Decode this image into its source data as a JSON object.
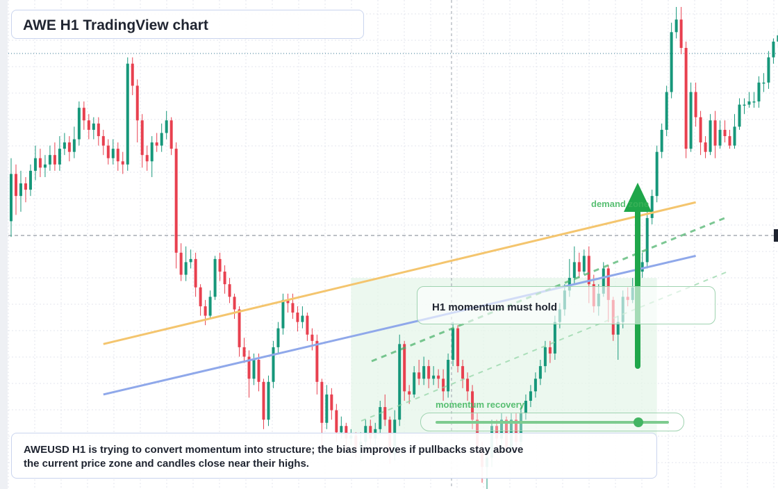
{
  "header": {
    "title": "AWE H1 TradingView chart"
  },
  "annotations": {
    "hold_label": "H1 momentum must hold",
    "demand_label": "demand zone",
    "momentum_label": "momentum recovery",
    "momentum_level": 0.87
  },
  "note": {
    "text": "AWEUSD H1 is trying to convert momentum into structure; the bias improves if pullbacks stay above the current price zone and candles close near their highs."
  },
  "colors": {
    "up": "#16977a",
    "down": "#e8404f",
    "orange_line": "#f4c56e",
    "blue_line": "#8fa8ea",
    "green": "#1fa64a",
    "zone": "#e6f6e9"
  },
  "chart_data": {
    "type": "candlestick",
    "symbol": "AWEUSD",
    "timeframe": "H1",
    "title": "AWE H1 TradingView chart",
    "grid": true,
    "candles": [
      {
        "o": 60,
        "c": 75,
        "h": 80,
        "l": 55
      },
      {
        "o": 75,
        "c": 68,
        "h": 78,
        "l": 62
      },
      {
        "o": 68,
        "c": 72,
        "h": 76,
        "l": 63
      },
      {
        "o": 72,
        "c": 70,
        "h": 74,
        "l": 66
      },
      {
        "o": 70,
        "c": 76,
        "h": 78,
        "l": 68
      },
      {
        "o": 76,
        "c": 80,
        "h": 84,
        "l": 73
      },
      {
        "o": 80,
        "c": 77,
        "h": 83,
        "l": 74
      },
      {
        "o": 77,
        "c": 78,
        "h": 81,
        "l": 74
      },
      {
        "o": 78,
        "c": 81,
        "h": 84,
        "l": 76
      },
      {
        "o": 81,
        "c": 78,
        "h": 85,
        "l": 76
      },
      {
        "o": 78,
        "c": 83,
        "h": 87,
        "l": 76
      },
      {
        "o": 83,
        "c": 85,
        "h": 88,
        "l": 81
      },
      {
        "o": 85,
        "c": 82,
        "h": 87,
        "l": 79
      },
      {
        "o": 82,
        "c": 86,
        "h": 90,
        "l": 80
      },
      {
        "o": 86,
        "c": 96,
        "h": 98,
        "l": 84
      },
      {
        "o": 96,
        "c": 92,
        "h": 98,
        "l": 89
      },
      {
        "o": 92,
        "c": 89,
        "h": 94,
        "l": 86
      },
      {
        "o": 89,
        "c": 91,
        "h": 93,
        "l": 86
      },
      {
        "o": 91,
        "c": 87,
        "h": 93,
        "l": 84
      },
      {
        "o": 87,
        "c": 84,
        "h": 89,
        "l": 81
      },
      {
        "o": 84,
        "c": 80,
        "h": 86,
        "l": 78
      },
      {
        "o": 80,
        "c": 83,
        "h": 86,
        "l": 78
      },
      {
        "o": 83,
        "c": 79,
        "h": 85,
        "l": 76
      },
      {
        "o": 79,
        "c": 78,
        "h": 82,
        "l": 75
      },
      {
        "o": 78,
        "c": 110,
        "h": 112,
        "l": 76
      },
      {
        "o": 110,
        "c": 103,
        "h": 112,
        "l": 100
      },
      {
        "o": 103,
        "c": 92,
        "h": 105,
        "l": 85
      },
      {
        "o": 92,
        "c": 81,
        "h": 94,
        "l": 77
      },
      {
        "o": 81,
        "c": 79,
        "h": 84,
        "l": 76
      },
      {
        "o": 79,
        "c": 85,
        "h": 87,
        "l": 74
      },
      {
        "o": 85,
        "c": 84,
        "h": 88,
        "l": 82
      },
      {
        "o": 84,
        "c": 88,
        "h": 91,
        "l": 82
      },
      {
        "o": 88,
        "c": 92,
        "h": 95,
        "l": 86
      },
      {
        "o": 92,
        "c": 83,
        "h": 93,
        "l": 81
      },
      {
        "o": 83,
        "c": 50,
        "h": 85,
        "l": 45
      },
      {
        "o": 50,
        "c": 43,
        "h": 53,
        "l": 41
      },
      {
        "o": 43,
        "c": 47,
        "h": 52,
        "l": 41
      },
      {
        "o": 47,
        "c": 48,
        "h": 51,
        "l": 45
      },
      {
        "o": 48,
        "c": 39,
        "h": 50,
        "l": 36
      },
      {
        "o": 39,
        "c": 33,
        "h": 40,
        "l": 30
      },
      {
        "o": 33,
        "c": 30,
        "h": 35,
        "l": 27
      },
      {
        "o": 30,
        "c": 36,
        "h": 38,
        "l": 29
      },
      {
        "o": 36,
        "c": 48,
        "h": 49,
        "l": 35
      },
      {
        "o": 48,
        "c": 44,
        "h": 50,
        "l": 41
      },
      {
        "o": 44,
        "c": 40,
        "h": 46,
        "l": 37
      },
      {
        "o": 40,
        "c": 36,
        "h": 42,
        "l": 34
      },
      {
        "o": 36,
        "c": 32,
        "h": 37,
        "l": 29
      },
      {
        "o": 32,
        "c": 20,
        "h": 33,
        "l": 17
      },
      {
        "o": 20,
        "c": 17,
        "h": 23,
        "l": 15
      },
      {
        "o": 17,
        "c": 10,
        "h": 19,
        "l": 4
      },
      {
        "o": 10,
        "c": 16,
        "h": 18,
        "l": 8
      },
      {
        "o": 16,
        "c": 9,
        "h": 18,
        "l": 6
      },
      {
        "o": 9,
        "c": -3,
        "h": 10,
        "l": -6
      },
      {
        "o": -3,
        "c": 9,
        "h": 11,
        "l": -5
      },
      {
        "o": 9,
        "c": 20,
        "h": 22,
        "l": 7
      },
      {
        "o": 20,
        "c": 26,
        "h": 28,
        "l": 18
      },
      {
        "o": 26,
        "c": 35,
        "h": 37,
        "l": 24
      },
      {
        "o": 35,
        "c": 34,
        "h": 37,
        "l": 31
      },
      {
        "o": 34,
        "c": 31,
        "h": 37,
        "l": 29
      },
      {
        "o": 31,
        "c": 28,
        "h": 33,
        "l": 25
      },
      {
        "o": 28,
        "c": 30,
        "h": 33,
        "l": 26
      },
      {
        "o": 30,
        "c": 24,
        "h": 31,
        "l": 22
      },
      {
        "o": 24,
        "c": 22,
        "h": 26,
        "l": 19
      },
      {
        "o": 22,
        "c": 9,
        "h": 24,
        "l": 5
      },
      {
        "o": 9,
        "c": -4,
        "h": 10,
        "l": -12
      },
      {
        "o": -4,
        "c": 5,
        "h": 8,
        "l": -6
      },
      {
        "o": 5,
        "c": 0,
        "h": 7,
        "l": -3
      },
      {
        "o": 0,
        "c": -7,
        "h": 2,
        "l": -10
      },
      {
        "o": -7,
        "c": -5,
        "h": -2,
        "l": -9
      },
      {
        "o": -5,
        "c": -9,
        "h": -4,
        "l": -13
      },
      {
        "o": -9,
        "c": -8,
        "h": -6,
        "l": -11
      },
      {
        "o": -8,
        "c": -12,
        "h": -7,
        "l": -15
      },
      {
        "o": -12,
        "c": -10,
        "h": -7,
        "l": -16
      },
      {
        "o": -10,
        "c": -5,
        "h": -3,
        "l": -13
      },
      {
        "o": -5,
        "c": -9,
        "h": -3,
        "l": -11
      },
      {
        "o": -9,
        "c": -6,
        "h": -4,
        "l": -11
      },
      {
        "o": -6,
        "c": 1,
        "h": 3,
        "l": -8
      },
      {
        "o": 1,
        "c": -3,
        "h": 5,
        "l": -5
      },
      {
        "o": -3,
        "c": -14,
        "h": -2,
        "l": -17
      },
      {
        "o": -14,
        "c": -3,
        "h": 0,
        "l": -16
      },
      {
        "o": -3,
        "c": 21,
        "h": 24,
        "l": -5
      },
      {
        "o": 21,
        "c": 6,
        "h": 22,
        "l": 3
      },
      {
        "o": 6,
        "c": 5,
        "h": 8,
        "l": 2
      },
      {
        "o": 5,
        "c": 12,
        "h": 14,
        "l": 4
      },
      {
        "o": 12,
        "c": 10,
        "h": 16,
        "l": 8
      },
      {
        "o": 10,
        "c": 14,
        "h": 17,
        "l": 8
      },
      {
        "o": 14,
        "c": 10,
        "h": 16,
        "l": 7
      },
      {
        "o": 10,
        "c": 11,
        "h": 14,
        "l": 8
      },
      {
        "o": 11,
        "c": 10,
        "h": 13,
        "l": 7
      },
      {
        "o": 10,
        "c": 6,
        "h": 13,
        "l": 3
      },
      {
        "o": 6,
        "c": 16,
        "h": 18,
        "l": 4
      },
      {
        "o": 16,
        "c": 26,
        "h": 28,
        "l": 14
      },
      {
        "o": 26,
        "c": 14,
        "h": 27,
        "l": 12
      },
      {
        "o": 14,
        "c": 10,
        "h": 16,
        "l": 7
      },
      {
        "o": 10,
        "c": 6,
        "h": 12,
        "l": 3
      },
      {
        "o": 6,
        "c": -3,
        "h": 8,
        "l": -6
      },
      {
        "o": -3,
        "c": -12,
        "h": -1,
        "l": -14
      },
      {
        "o": -12,
        "c": -18,
        "h": -10,
        "l": -23
      },
      {
        "o": -18,
        "c": -15,
        "h": -13,
        "l": -25
      },
      {
        "o": -15,
        "c": -5,
        "h": -3,
        "l": -18
      },
      {
        "o": -5,
        "c": -9,
        "h": -3,
        "l": -12
      },
      {
        "o": -9,
        "c": -3,
        "h": -1,
        "l": -11
      },
      {
        "o": -3,
        "c": -12,
        "h": -2,
        "l": -14
      },
      {
        "o": -12,
        "c": -3,
        "h": -1,
        "l": -14
      },
      {
        "o": -3,
        "c": -10,
        "h": -1,
        "l": -12
      },
      {
        "o": -10,
        "c": -1,
        "h": 1,
        "l": -13
      },
      {
        "o": -1,
        "c": 3,
        "h": 5,
        "l": -3
      },
      {
        "o": 3,
        "c": 6,
        "h": 8,
        "l": 1
      },
      {
        "o": 6,
        "c": 10,
        "h": 12,
        "l": 4
      },
      {
        "o": 10,
        "c": 14,
        "h": 16,
        "l": 8
      },
      {
        "o": 14,
        "c": 20,
        "h": 22,
        "l": 12
      },
      {
        "o": 20,
        "c": 18,
        "h": 22,
        "l": 15
      },
      {
        "o": 18,
        "c": 28,
        "h": 30,
        "l": 16
      },
      {
        "o": 28,
        "c": 32,
        "h": 34,
        "l": 26
      },
      {
        "o": 32,
        "c": 38,
        "h": 40,
        "l": 30
      },
      {
        "o": 38,
        "c": 42,
        "h": 48,
        "l": 36
      },
      {
        "o": 42,
        "c": 47,
        "h": 52,
        "l": 40
      },
      {
        "o": 47,
        "c": 44,
        "h": 50,
        "l": 42
      },
      {
        "o": 44,
        "c": 49,
        "h": 51,
        "l": 43
      },
      {
        "o": 49,
        "c": 40,
        "h": 52,
        "l": 34
      },
      {
        "o": 40,
        "c": 33,
        "h": 43,
        "l": 31
      },
      {
        "o": 33,
        "c": 37,
        "h": 40,
        "l": 30
      },
      {
        "o": 37,
        "c": 45,
        "h": 47,
        "l": 36
      },
      {
        "o": 45,
        "c": 35,
        "h": 46,
        "l": 28
      },
      {
        "o": 35,
        "c": 24,
        "h": 36,
        "l": 22
      },
      {
        "o": 24,
        "c": 28,
        "h": 30,
        "l": 16
      },
      {
        "o": 28,
        "c": 36,
        "h": 38,
        "l": 26
      },
      {
        "o": 36,
        "c": 35,
        "h": 39,
        "l": 33
      },
      {
        "o": 35,
        "c": 39,
        "h": 42,
        "l": 34
      },
      {
        "o": 39,
        "c": 44,
        "h": 46,
        "l": 37
      },
      {
        "o": 44,
        "c": 47,
        "h": 50,
        "l": 42
      },
      {
        "o": 47,
        "c": 61,
        "h": 63,
        "l": 45
      },
      {
        "o": 61,
        "c": 68,
        "h": 70,
        "l": 59
      },
      {
        "o": 68,
        "c": 82,
        "h": 84,
        "l": 66
      },
      {
        "o": 82,
        "c": 89,
        "h": 91,
        "l": 80
      },
      {
        "o": 89,
        "c": 101,
        "h": 103,
        "l": 87
      },
      {
        "o": 101,
        "c": 120,
        "h": 123,
        "l": 99
      },
      {
        "o": 120,
        "c": 124,
        "h": 128,
        "l": 118
      },
      {
        "o": 124,
        "c": 115,
        "h": 128,
        "l": 113
      },
      {
        "o": 115,
        "c": 83,
        "h": 117,
        "l": 80
      },
      {
        "o": 83,
        "c": 101,
        "h": 104,
        "l": 82
      },
      {
        "o": 101,
        "c": 93,
        "h": 104,
        "l": 90
      },
      {
        "o": 93,
        "c": 85,
        "h": 95,
        "l": 81
      },
      {
        "o": 85,
        "c": 82,
        "h": 87,
        "l": 80
      },
      {
        "o": 82,
        "c": 92,
        "h": 94,
        "l": 81
      },
      {
        "o": 92,
        "c": 84,
        "h": 95,
        "l": 80
      },
      {
        "o": 84,
        "c": 89,
        "h": 92,
        "l": 83
      },
      {
        "o": 89,
        "c": 87,
        "h": 92,
        "l": 85
      },
      {
        "o": 87,
        "c": 84,
        "h": 89,
        "l": 83
      },
      {
        "o": 84,
        "c": 90,
        "h": 94,
        "l": 83
      },
      {
        "o": 90,
        "c": 97,
        "h": 99,
        "l": 89
      },
      {
        "o": 97,
        "c": 97,
        "h": 99,
        "l": 94
      },
      {
        "o": 97,
        "c": 98,
        "h": 101,
        "l": 96
      },
      {
        "o": 98,
        "c": 98,
        "h": 101,
        "l": 96
      },
      {
        "o": 98,
        "c": 104,
        "h": 106,
        "l": 96
      },
      {
        "o": 104,
        "c": 104,
        "h": 107,
        "l": 101
      },
      {
        "o": 104,
        "c": 112,
        "h": 114,
        "l": 102
      },
      {
        "o": 112,
        "c": 117,
        "h": 118,
        "l": 110
      },
      {
        "o": 117,
        "c": 119,
        "h": 121,
        "l": 115
      },
      {
        "o": 119,
        "c": 114,
        "h": 120,
        "l": 111
      },
      {
        "o": 114,
        "c": 116,
        "h": 118,
        "l": 112
      },
      {
        "o": 116,
        "c": 108,
        "h": 117,
        "l": 106
      },
      {
        "o": 108,
        "c": 116,
        "h": 118,
        "l": 106
      },
      {
        "o": 116,
        "c": 109,
        "h": 117,
        "l": 106
      },
      {
        "o": 109,
        "c": 117,
        "h": 119,
        "l": 107
      },
      {
        "o": 117,
        "c": 105,
        "h": 118,
        "l": 97
      },
      {
        "o": 105,
        "c": 97,
        "h": 107,
        "l": 93
      },
      {
        "o": 97,
        "c": 109,
        "h": 112,
        "l": 94
      },
      {
        "o": 109,
        "c": 113,
        "h": 116,
        "l": 107
      }
    ],
    "trendlines": [
      {
        "name": "",
        "color": "orange",
        "start_index": 19,
        "start": 21,
        "end_index": 141,
        "end": 66
      },
      {
        "name": "",
        "color": "blue",
        "start_index": 19,
        "start": 5,
        "end_index": 141,
        "end": 49
      }
    ],
    "zones": [
      {
        "label": "demand zone",
        "from_index": 70,
        "to_index": 133,
        "low": -8,
        "high": 42
      }
    ]
  }
}
